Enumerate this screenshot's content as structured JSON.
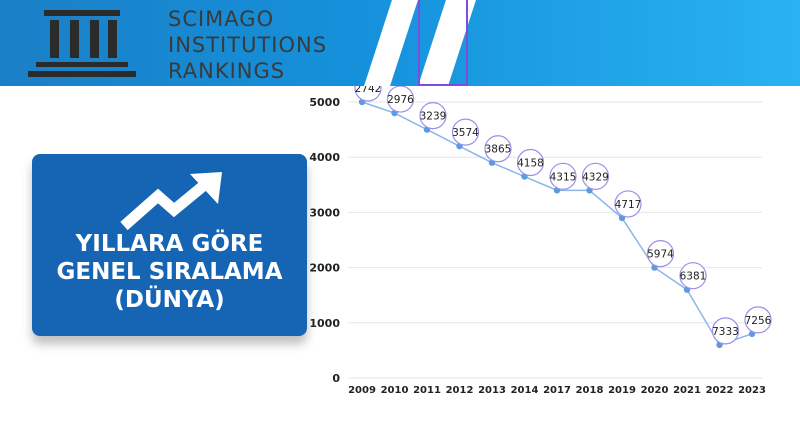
{
  "header": {
    "logo_lines": [
      "SCIMAGO",
      "INSTITUTIONS",
      "RANKINGS"
    ]
  },
  "card": {
    "title_lines": [
      "YILLARA GÖRE",
      "GENEL SIRALAMA",
      "(DÜNYA)"
    ]
  },
  "chart_data": {
    "type": "line",
    "title": "",
    "xlabel": "",
    "ylabel": "",
    "ylim": [
      0,
      5000
    ],
    "y_ticks": [
      0,
      1000,
      2000,
      3000,
      4000,
      5000
    ],
    "grid": true,
    "legend": "none",
    "categories": [
      "2009",
      "2010",
      "2011",
      "2012",
      "2013",
      "2014",
      "2017",
      "2018",
      "2019",
      "2020",
      "2021",
      "2022",
      "2023"
    ],
    "series": [
      {
        "values": [
          5000,
          4800,
          4500,
          4200,
          3900,
          3650,
          3400,
          3400,
          2900,
          2000,
          1600,
          600,
          800
        ],
        "labels": [
          "2742",
          "2976",
          "3239",
          "3574",
          "3865",
          "4158",
          "4315",
          "4329",
          "4717",
          "5974",
          "6381",
          "7333",
          "7256"
        ]
      }
    ],
    "line_color": "#8ab6ea",
    "marker_color": "#5b9be0"
  }
}
